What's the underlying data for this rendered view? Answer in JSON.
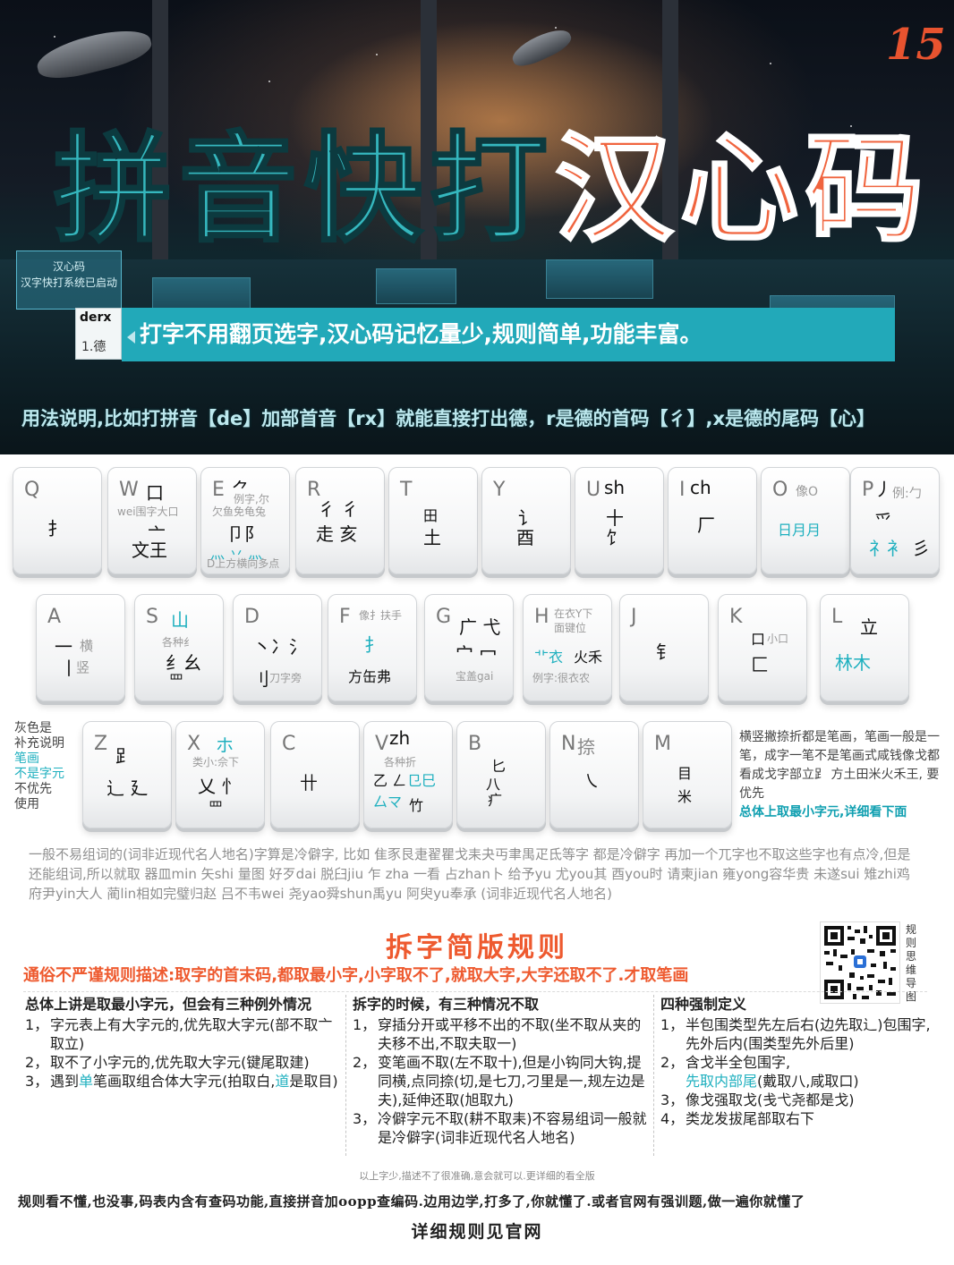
{
  "banner": {
    "page_number": "15",
    "title_part1": "拼音快打",
    "title_part2": "汉心码",
    "side_screen_title": "汉心码",
    "side_screen_subtitle": "汉字快打系统已启动",
    "ime_code": "derx",
    "ime_candidate": "1.德",
    "slogan": "打字不用翻页选字,汉心码记忆量少,规则简单,功能丰富。",
    "usage": "用法说明,比如打拼音【de】加部首音【rx】就能直接打出德，r是德的首码【彳】,x是德的尾码【心】"
  },
  "keyboard": {
    "row1": [
      {
        "letter": "Q",
        "a1": "扌"
      },
      {
        "letter": "W",
        "a1": "口",
        "g1": "wei围字大口",
        "a2": "文王",
        "a3": "亠"
      },
      {
        "letter": "E",
        "a1": "⺈",
        "g1": "例字,尔",
        "g2": "欠鱼免龟兔",
        "a2": "卩阝",
        "c1": "灬 丷 灬",
        "g3": "D上方横向多点"
      },
      {
        "letter": "R",
        "a1": "彳 彳",
        "a2": "走 亥"
      },
      {
        "letter": "T",
        "a1": "田",
        "a2": "土"
      },
      {
        "letter": "Y",
        "a1": "讠",
        "a2": "酉"
      },
      {
        "letter": "U",
        "a1": "sh",
        "a2": "十",
        "a3": "饣"
      },
      {
        "letter": "I",
        "a1": "ch",
        "a2": "厂"
      },
      {
        "letter": "O",
        "g1": "像O",
        "c1": "日月月"
      },
      {
        "letter": "P",
        "a1": "丿",
        "g1": "例:勹",
        "a2": "爫",
        "c1": "礻衤",
        "a3": "彡"
      }
    ],
    "row2": [
      {
        "letter": "A",
        "a1": "一",
        "g1": "横",
        "a2": "丨",
        "g2": "竖"
      },
      {
        "letter": "S",
        "c1": "山",
        "g1": "各种纟",
        "a1": "纟幺",
        "a2": "罒"
      },
      {
        "letter": "D",
        "a1": "丶冫氵",
        "a2": "刂",
        "g1": "刀字旁"
      },
      {
        "letter": "F",
        "g1": "像扌扶手",
        "c1": "扌",
        "a1": "方缶弗"
      },
      {
        "letter": "G",
        "a1": "广 弋",
        "a2": "宀 冖",
        "g1": "宝盖gai"
      },
      {
        "letter": "H",
        "g1": "在衣Y下",
        "g2": "面键位",
        "c1": "⻀衣",
        "a1": "火禾",
        "g3": "例字:很衣农"
      },
      {
        "letter": "J",
        "a1": "钅"
      },
      {
        "letter": "K",
        "a1": "口",
        "g1": "小口",
        "a2": "匚"
      },
      {
        "letter": "L",
        "a1": "立",
        "c1": "林木"
      }
    ],
    "row3": [
      {
        "letter": "Z",
        "a1": "𧾷",
        "a2": "辶 廴"
      },
      {
        "letter": "X",
        "c1": "ホ",
        "g1": "类小:佘下",
        "a1": "乂 忄",
        "a2": "罒"
      },
      {
        "letter": "C",
        "a1": "卄"
      },
      {
        "letter": "V",
        "a1": "zh",
        "g1": "各种折",
        "a2": "乙 ㄥ",
        "c1": "⺋巳",
        "c2": "厶マ",
        "a3": "竹"
      },
      {
        "letter": "B",
        "a1": "匕",
        "a2": "八",
        "a3": "疒"
      },
      {
        "letter": "N",
        "a1": "捺",
        "a2": "㇏"
      },
      {
        "letter": "M",
        "a1": "目",
        "a2": "米"
      }
    ]
  },
  "side_notes": {
    "left": [
      "灰色是",
      "补充说明",
      "笔画",
      "不是字元",
      "不优先",
      "使用"
    ],
    "right_text": "横竖撇捺折都是笔画，笔画一般是一笔，成字一笔不是笔画式咸钱像戈都看成戈字部立𧾷 方土田米火禾王, 要优先",
    "right_highlight": "总体上取最小字元,详细看下面"
  },
  "rare_note": "一般不易组词的(词非近现代名人地名)字算是冷僻字, 比如 隹豕艮疌翟瞿戈耒夬丏聿禺疋氐等字 都是冷僻字 再加一个兀字也不取这些字也有点冷,但是还能组词,所以就取   器皿min 矢shi 量图  好歹dai 脱臼jiu 乍 zha 一看  占zhan卜 给予yu  尤you其 酉you时 请柬jian 雍yong容华贵 未遂sui 雉zhi鸡 府尹yin大人 蔺lin相如完璧归赵   吕不韦wei 尧yao舜shun禹yu 阿臾yu奉承 (词非近现代名人地名)",
  "rules": {
    "title": "拆字简版规则",
    "subtitle": "通俗不严谨规则描述:取字的首末码,都取最小字,小字取不了,就取大字,大字还取不了.才取笔画",
    "qr_label": "规则思维导图",
    "col1": {
      "head": "总体上讲是取最小字元，但会有三种例外情况",
      "items": [
        {
          "num": "1，",
          "text": "字元表上有大字元的,优先取大字元(部不取亠取立)"
        },
        {
          "num": "2，",
          "text": "取不了小字元的,优先取大字元(键尾取建)"
        },
        {
          "num": "3，",
          "pre": "遇到",
          "hl": "单",
          "mid": "笔画取组合体大字元(拍取白,",
          "hl2": "道",
          "post": "是取目)"
        }
      ]
    },
    "col2": {
      "head": "拆字的时候，有三种情况不取",
      "items": [
        {
          "num": "1，",
          "text": "穿插分开或平移不出的不取(坐不取从夹的夫移不出,不取夫取一)"
        },
        {
          "num": "2，",
          "text": "变笔画不取(左不取十),但是小钩同大钩,提同横,点同捺(切,是七刀,刁里是一,规左边是夫),延伸还取(旭取九)"
        },
        {
          "num": "3，",
          "text": "冷僻字元不取(耕不取耒)不容易组词一般就是冷僻字(词非近现代名人地名)"
        }
      ]
    },
    "col3": {
      "head": "四种强制定义",
      "items": [
        {
          "num": "1，",
          "text": "半包围类型先左后右(边先取辶)包围字,先外后内(围类型先外后里)"
        },
        {
          "num": "2，",
          "text": "含戈半全包围字,",
          "hl": "先取内部尾",
          "post": "(戴取八,咸取口)"
        },
        {
          "num": "3，",
          "text": "像戈强取戈(戋弋尧都是戈)"
        },
        {
          "num": "4，",
          "text": "类龙发拔尾部取右下"
        }
      ]
    }
  },
  "footer": {
    "note": "以上字少,描述不了很准确,意会就可以.更详细的看全版",
    "line1": "规则看不懂,也没事,码表内含有查码功能,直接拼音加oopp查编码.边用边学,打多了,你就懂了.或者官网有强训题,做一遍你就懂了",
    "line2": "详细规则见官网"
  },
  "colors": {
    "teal": "#1fb0bf",
    "orange": "#ee5a2f",
    "banner_bar": "#22a9b9"
  }
}
